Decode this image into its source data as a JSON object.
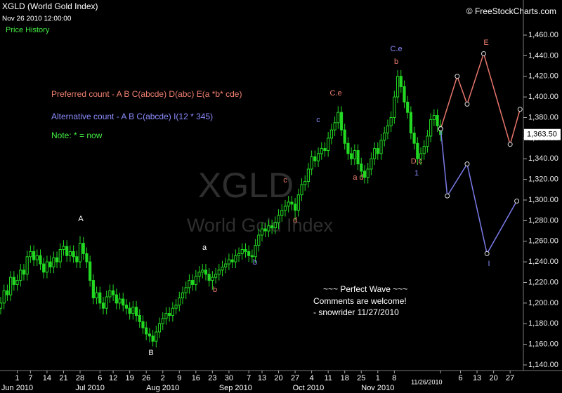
{
  "chart_data": {
    "type": "candlestick",
    "title": "XGLD (World Gold Index)",
    "subtitle": "Nov 26 2010 12:00:00",
    "panel_label": "Price History",
    "source": "© FreeStockCharts.com",
    "watermark": [
      "XGLD",
      "World Gold Index"
    ],
    "color": "#22d822",
    "x": [
      "2010-05-25",
      "2010-05-26",
      "2010-05-27",
      "2010-05-28",
      "2010-05-31",
      "2010-06-01",
      "2010-06-02",
      "2010-06-03",
      "2010-06-04",
      "2010-06-07",
      "2010-06-08",
      "2010-06-09",
      "2010-06-10",
      "2010-06-11",
      "2010-06-14",
      "2010-06-15",
      "2010-06-16",
      "2010-06-17",
      "2010-06-18",
      "2010-06-21",
      "2010-06-22",
      "2010-06-23",
      "2010-06-24",
      "2010-06-25",
      "2010-06-28",
      "2010-06-29",
      "2010-06-30",
      "2010-07-01",
      "2010-07-02",
      "2010-07-05",
      "2010-07-06",
      "2010-07-07",
      "2010-07-08",
      "2010-07-09",
      "2010-07-12",
      "2010-07-13",
      "2010-07-14",
      "2010-07-15",
      "2010-07-16",
      "2010-07-19",
      "2010-07-20",
      "2010-07-21",
      "2010-07-22",
      "2010-07-23",
      "2010-07-26",
      "2010-07-27",
      "2010-07-28",
      "2010-07-29",
      "2010-07-30",
      "2010-08-02",
      "2010-08-03",
      "2010-08-04",
      "2010-08-05",
      "2010-08-06",
      "2010-08-09",
      "2010-08-10",
      "2010-08-11",
      "2010-08-12",
      "2010-08-13",
      "2010-08-16",
      "2010-08-17",
      "2010-08-18",
      "2010-08-19",
      "2010-08-20",
      "2010-08-23",
      "2010-08-24",
      "2010-08-25",
      "2010-08-26",
      "2010-08-27",
      "2010-08-30",
      "2010-08-31",
      "2010-09-01",
      "2010-09-02",
      "2010-09-03",
      "2010-09-06",
      "2010-09-07",
      "2010-09-08",
      "2010-09-09",
      "2010-09-10",
      "2010-09-13",
      "2010-09-14",
      "2010-09-15",
      "2010-09-16",
      "2010-09-17",
      "2010-09-20",
      "2010-09-21",
      "2010-09-22",
      "2010-09-23",
      "2010-09-24",
      "2010-09-27",
      "2010-09-28",
      "2010-09-29",
      "2010-09-30",
      "2010-10-01",
      "2010-10-04",
      "2010-10-05",
      "2010-10-06",
      "2010-10-07",
      "2010-10-08",
      "2010-10-11",
      "2010-10-12",
      "2010-10-13",
      "2010-10-14",
      "2010-10-15",
      "2010-10-18",
      "2010-10-19",
      "2010-10-20",
      "2010-10-21",
      "2010-10-22",
      "2010-10-25",
      "2010-10-26",
      "2010-10-27",
      "2010-10-28",
      "2010-10-29",
      "2010-11-01",
      "2010-11-02",
      "2010-11-03",
      "2010-11-04",
      "2010-11-05",
      "2010-11-08",
      "2010-11-09",
      "2010-11-10",
      "2010-11-11",
      "2010-11-12",
      "2010-11-15",
      "2010-11-16",
      "2010-11-17",
      "2010-11-18",
      "2010-11-19",
      "2010-11-22",
      "2010-11-23",
      "2010-11-24",
      "2010-11-25",
      "2010-11-26"
    ],
    "open": [
      1195,
      1200,
      1212,
      1208,
      1225,
      1218,
      1222,
      1232,
      1228,
      1245,
      1250,
      1242,
      1246,
      1238,
      1230,
      1240,
      1235,
      1244,
      1240,
      1252,
      1255,
      1246,
      1250,
      1245,
      1240,
      1258,
      1248,
      1240,
      1222,
      1205,
      1210,
      1200,
      1195,
      1206,
      1212,
      1208,
      1200,
      1204,
      1198,
      1195,
      1190,
      1196,
      1188,
      1182,
      1176,
      1170,
      1168,
      1163,
      1172,
      1180,
      1185,
      1190,
      1188,
      1195,
      1198,
      1205,
      1210,
      1215,
      1222,
      1218,
      1226,
      1230,
      1232,
      1228,
      1222,
      1225,
      1228,
      1232,
      1235,
      1238,
      1242,
      1240,
      1246,
      1248,
      1252,
      1250,
      1246,
      1245,
      1256,
      1266,
      1272,
      1270,
      1275,
      1273,
      1278,
      1285,
      1290,
      1294,
      1298,
      1296,
      1290,
      1305,
      1315,
      1318,
      1330,
      1342,
      1338,
      1345,
      1350,
      1348,
      1360,
      1368,
      1375,
      1385,
      1368,
      1355,
      1345,
      1340,
      1348,
      1335,
      1328,
      1322,
      1330,
      1340,
      1350,
      1345,
      1358,
      1365,
      1372,
      1380,
      1400,
      1420,
      1410,
      1395,
      1385,
      1365,
      1355,
      1340,
      1345,
      1352,
      1362,
      1378,
      1382,
      1372
    ],
    "high": [
      1206,
      1218,
      1218,
      1231,
      1231,
      1228,
      1238,
      1238,
      1251,
      1256,
      1256,
      1252,
      1252,
      1244,
      1246,
      1246,
      1250,
      1250,
      1258,
      1261,
      1261,
      1256,
      1256,
      1251,
      1265,
      1264,
      1254,
      1246,
      1228,
      1216,
      1216,
      1206,
      1212,
      1218,
      1218,
      1214,
      1210,
      1210,
      1204,
      1201,
      1202,
      1202,
      1194,
      1188,
      1182,
      1176,
      1174,
      1178,
      1186,
      1191,
      1196,
      1196,
      1201,
      1204,
      1211,
      1216,
      1221,
      1228,
      1228,
      1232,
      1236,
      1238,
      1238,
      1234,
      1231,
      1234,
      1238,
      1241,
      1244,
      1248,
      1248,
      1252,
      1254,
      1258,
      1258,
      1256,
      1252,
      1262,
      1272,
      1278,
      1278,
      1281,
      1281,
      1284,
      1291,
      1296,
      1300,
      1304,
      1304,
      1302,
      1311,
      1321,
      1324,
      1336,
      1348,
      1348,
      1351,
      1356,
      1356,
      1366,
      1374,
      1381,
      1391,
      1391,
      1374,
      1361,
      1351,
      1354,
      1354,
      1341,
      1334,
      1336,
      1346,
      1356,
      1356,
      1364,
      1371,
      1378,
      1386,
      1406,
      1426,
      1426,
      1416,
      1401,
      1391,
      1371,
      1361,
      1351,
      1358,
      1368,
      1384,
      1388,
      1388,
      1378
    ],
    "low": [
      1189,
      1194,
      1202,
      1202,
      1212,
      1212,
      1216,
      1222,
      1222,
      1239,
      1236,
      1236,
      1232,
      1224,
      1224,
      1229,
      1229,
      1234,
      1234,
      1246,
      1240,
      1240,
      1239,
      1234,
      1234,
      1242,
      1234,
      1216,
      1199,
      1199,
      1194,
      1189,
      1189,
      1200,
      1202,
      1194,
      1194,
      1192,
      1189,
      1184,
      1184,
      1182,
      1176,
      1170,
      1164,
      1162,
      1158,
      1157,
      1166,
      1174,
      1179,
      1182,
      1182,
      1189,
      1192,
      1199,
      1204,
      1209,
      1212,
      1212,
      1220,
      1224,
      1222,
      1216,
      1213,
      1219,
      1222,
      1226,
      1229,
      1232,
      1234,
      1234,
      1240,
      1242,
      1244,
      1240,
      1239,
      1239,
      1250,
      1260,
      1264,
      1264,
      1267,
      1267,
      1272,
      1279,
      1284,
      1288,
      1290,
      1280,
      1284,
      1299,
      1309,
      1312,
      1324,
      1332,
      1332,
      1339,
      1342,
      1342,
      1354,
      1362,
      1369,
      1362,
      1349,
      1339,
      1334,
      1334,
      1329,
      1322,
      1316,
      1316,
      1324,
      1334,
      1339,
      1339,
      1352,
      1359,
      1366,
      1374,
      1394,
      1404,
      1389,
      1379,
      1359,
      1349,
      1334,
      1334,
      1339,
      1346,
      1356,
      1372,
      1366,
      1357
    ],
    "close": [
      1200,
      1212,
      1208,
      1225,
      1218,
      1222,
      1232,
      1228,
      1245,
      1250,
      1242,
      1246,
      1238,
      1230,
      1240,
      1235,
      1244,
      1240,
      1252,
      1255,
      1246,
      1250,
      1245,
      1240,
      1258,
      1248,
      1240,
      1222,
      1205,
      1210,
      1200,
      1195,
      1206,
      1212,
      1208,
      1200,
      1204,
      1198,
      1195,
      1190,
      1196,
      1188,
      1182,
      1176,
      1170,
      1168,
      1163,
      1172,
      1180,
      1185,
      1190,
      1188,
      1195,
      1198,
      1205,
      1210,
      1215,
      1222,
      1218,
      1226,
      1230,
      1232,
      1228,
      1222,
      1225,
      1228,
      1232,
      1235,
      1238,
      1242,
      1240,
      1246,
      1248,
      1252,
      1250,
      1246,
      1245,
      1256,
      1266,
      1272,
      1270,
      1275,
      1273,
      1278,
      1285,
      1290,
      1294,
      1298,
      1296,
      1290,
      1305,
      1315,
      1318,
      1330,
      1342,
      1338,
      1345,
      1350,
      1348,
      1360,
      1368,
      1375,
      1385,
      1368,
      1355,
      1345,
      1340,
      1348,
      1335,
      1328,
      1322,
      1330,
      1340,
      1350,
      1345,
      1358,
      1365,
      1372,
      1380,
      1400,
      1420,
      1410,
      1395,
      1385,
      1365,
      1355,
      1340,
      1345,
      1352,
      1362,
      1378,
      1382,
      1372,
      1363.5
    ],
    "xlim": [
      "2010-05-25",
      "2010-12-31"
    ],
    "xticks": [
      {
        "value": "2010-06-01",
        "label": "1"
      },
      {
        "value": "2010-06-07",
        "label": "7"
      },
      {
        "value": "2010-06-14",
        "label": "14"
      },
      {
        "value": "2010-06-21",
        "label": "21"
      },
      {
        "value": "2010-06-28",
        "label": "28"
      },
      {
        "value": "2010-07-06",
        "label": "6"
      },
      {
        "value": "2010-07-12",
        "label": "12"
      },
      {
        "value": "2010-07-19",
        "label": "19"
      },
      {
        "value": "2010-07-26",
        "label": "26"
      },
      {
        "value": "2010-08-02",
        "label": "2"
      },
      {
        "value": "2010-08-09",
        "label": "9"
      },
      {
        "value": "2010-08-16",
        "label": "16"
      },
      {
        "value": "2010-08-23",
        "label": "23"
      },
      {
        "value": "2010-08-30",
        "label": "30"
      },
      {
        "value": "2010-09-07",
        "label": "7"
      },
      {
        "value": "2010-09-13",
        "label": "13"
      },
      {
        "value": "2010-09-20",
        "label": "20"
      },
      {
        "value": "2010-09-27",
        "label": "27"
      },
      {
        "value": "2010-10-04",
        "label": "4"
      },
      {
        "value": "2010-10-11",
        "label": "11"
      },
      {
        "value": "2010-10-18",
        "label": "18"
      },
      {
        "value": "2010-10-25",
        "label": "25"
      },
      {
        "value": "2010-11-01",
        "label": "1"
      },
      {
        "value": "2010-11-08",
        "label": "8"
      },
      {
        "value": "2010-11-26",
        "label": "11/26/2010"
      },
      {
        "value": "2010-12-06",
        "label": "6"
      },
      {
        "value": "2010-12-13",
        "label": "13"
      },
      {
        "value": "2010-12-20",
        "label": "20"
      },
      {
        "value": "2010-12-27",
        "label": "27"
      }
    ],
    "month_labels": [
      {
        "value": "2010-06-01",
        "label": "Jun 2010"
      },
      {
        "value": "2010-07-01",
        "label": "Jul 2010"
      },
      {
        "value": "2010-08-02",
        "label": "Aug 2010"
      },
      {
        "value": "2010-09-01",
        "label": "Sep 2010"
      },
      {
        "value": "2010-10-01",
        "label": "Oct 2010"
      },
      {
        "value": "2010-11-01",
        "label": "Nov 2010"
      }
    ],
    "ylim": [
      1140,
      1460
    ],
    "yticks": [
      {
        "value": 1140,
        "label": "1,140.00"
      },
      {
        "value": 1160,
        "label": "1,160.00"
      },
      {
        "value": 1180,
        "label": "1,180.00"
      },
      {
        "value": 1200,
        "label": "1,200.00"
      },
      {
        "value": 1220,
        "label": "1,220.00"
      },
      {
        "value": 1240,
        "label": "1,240.00"
      },
      {
        "value": 1260,
        "label": "1,260.00"
      },
      {
        "value": 1280,
        "label": "1,280.00"
      },
      {
        "value": 1300,
        "label": "1,300.00"
      },
      {
        "value": 1320,
        "label": "1,320.00"
      },
      {
        "value": 1340,
        "label": "1,340.00"
      },
      {
        "value": 1360,
        "label": "1,360.00"
      },
      {
        "value": 1380,
        "label": "1,380.00"
      },
      {
        "value": 1400,
        "label": "1,400.00"
      },
      {
        "value": 1420,
        "label": "1,420.00"
      },
      {
        "value": 1440,
        "label": "1,440.00"
      },
      {
        "value": 1460,
        "label": "1,460.00"
      }
    ],
    "grid": false,
    "last_price": {
      "value": 1363.5,
      "label": "1,363.50"
    },
    "projections": [
      {
        "color": "#e8766c",
        "x": [
          "2010-11-26",
          "2010-12-03",
          "2010-12-08",
          "2010-12-15",
          "2010-12-27",
          "2010-12-30"
        ],
        "values": [
          1369,
          1420,
          1393,
          1442,
          1354,
          1388
        ]
      },
      {
        "color": "#7b7bea",
        "x": [
          "2010-11-26",
          "2010-11-30",
          "2010-12-08",
          "2010-12-16",
          "2010-12-29"
        ],
        "values": [
          1369,
          1304,
          1335,
          1248,
          1299
        ]
      }
    ],
    "notes": [
      {
        "text": "Preferred count -  A B C(abcde) D(abc) E(a *b* cde)",
        "color": "#f08070"
      },
      {
        "text": "Alternative count -  A B C(abcde) I(12 * 345)",
        "color": "#8c8cff"
      },
      {
        "text": "Note:  * = now",
        "color": "#44ee44"
      }
    ],
    "comment": [
      "~~~ Perfect Wave ~~~",
      "Comments are welcome!",
      "- snowrider  11/27/2010"
    ],
    "wave_labels": [
      {
        "text": "A",
        "color": "#ffffff"
      },
      {
        "text": "B",
        "color": "#ffffff"
      },
      {
        "text": "a",
        "color": "#ffffff"
      },
      {
        "text": "b",
        "color": "#f08070"
      },
      {
        "text": "b",
        "color": "#8c8cff"
      },
      {
        "text": "c",
        "color": "#f08070"
      },
      {
        "text": "d",
        "color": "#f08070"
      },
      {
        "text": "c",
        "color": "#8c8cff"
      },
      {
        "text": "C.e",
        "color": "#f08070"
      },
      {
        "text": "a d",
        "color": "#f08070"
      },
      {
        "text": "C.e",
        "color": "#8c8cff"
      },
      {
        "text": "b",
        "color": "#f08070"
      },
      {
        "text": "D.c",
        "color": "#f08070"
      },
      {
        "text": "1",
        "color": "#8c8cff"
      },
      {
        "text": "E",
        "color": "#f08070"
      },
      {
        "text": "I",
        "color": "#8c8cff"
      }
    ]
  }
}
